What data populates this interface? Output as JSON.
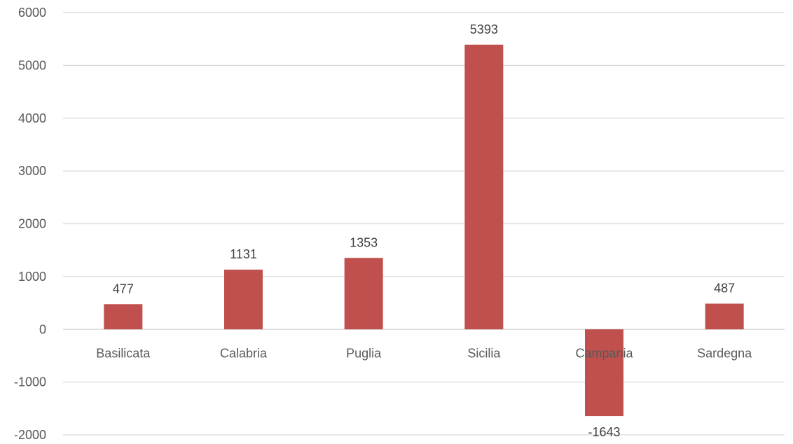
{
  "chart_data": {
    "type": "bar",
    "categories": [
      "Basilicata",
      "Calabria",
      "Puglia",
      "Sicilia",
      "Campania",
      "Sardegna"
    ],
    "series": [
      {
        "values": [
          477,
          1131,
          1353,
          5393,
          -1643,
          487
        ],
        "color": "#c0504d"
      }
    ],
    "data_labels": [
      "477",
      "1131",
      "1353",
      "5393",
      "-1643",
      "487"
    ],
    "ylim": [
      -2000,
      6000
    ],
    "yticks": [
      6000,
      5000,
      4000,
      3000,
      2000,
      1000,
      0,
      -1000,
      -2000
    ],
    "grid": true,
    "legend": "none",
    "gridline_color": "#d9d9d9",
    "tick_label_color": "#595959"
  }
}
